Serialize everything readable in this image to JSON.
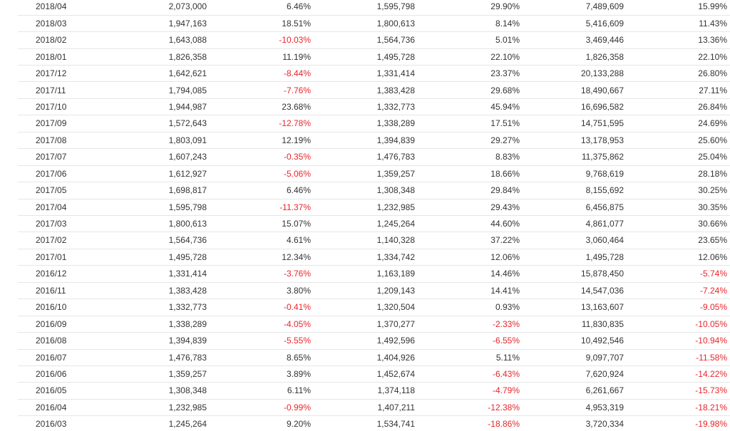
{
  "table": {
    "rows": [
      [
        "2018/04",
        "2,073,000",
        "6.46%",
        "1,595,798",
        "29.90%",
        "7,489,609",
        "15.99%"
      ],
      [
        "2018/03",
        "1,947,163",
        "18.51%",
        "1,800,613",
        "8.14%",
        "5,416,609",
        "11.43%"
      ],
      [
        "2018/02",
        "1,643,088",
        "-10.03%",
        "1,564,736",
        "5.01%",
        "3,469,446",
        "13.36%"
      ],
      [
        "2018/01",
        "1,826,358",
        "11.19%",
        "1,495,728",
        "22.10%",
        "1,826,358",
        "22.10%"
      ],
      [
        "2017/12",
        "1,642,621",
        "-8.44%",
        "1,331,414",
        "23.37%",
        "20,133,288",
        "26.80%"
      ],
      [
        "2017/11",
        "1,794,085",
        "-7.76%",
        "1,383,428",
        "29.68%",
        "18,490,667",
        "27.11%"
      ],
      [
        "2017/10",
        "1,944,987",
        "23.68%",
        "1,332,773",
        "45.94%",
        "16,696,582",
        "26.84%"
      ],
      [
        "2017/09",
        "1,572,643",
        "-12.78%",
        "1,338,289",
        "17.51%",
        "14,751,595",
        "24.69%"
      ],
      [
        "2017/08",
        "1,803,091",
        "12.19%",
        "1,394,839",
        "29.27%",
        "13,178,953",
        "25.60%"
      ],
      [
        "2017/07",
        "1,607,243",
        "-0.35%",
        "1,476,783",
        "8.83%",
        "11,375,862",
        "25.04%"
      ],
      [
        "2017/06",
        "1,612,927",
        "-5.06%",
        "1,359,257",
        "18.66%",
        "9,768,619",
        "28.18%"
      ],
      [
        "2017/05",
        "1,698,817",
        "6.46%",
        "1,308,348",
        "29.84%",
        "8,155,692",
        "30.25%"
      ],
      [
        "2017/04",
        "1,595,798",
        "-11.37%",
        "1,232,985",
        "29.43%",
        "6,456,875",
        "30.35%"
      ],
      [
        "2017/03",
        "1,800,613",
        "15.07%",
        "1,245,264",
        "44.60%",
        "4,861,077",
        "30.66%"
      ],
      [
        "2017/02",
        "1,564,736",
        "4.61%",
        "1,140,328",
        "37.22%",
        "3,060,464",
        "23.65%"
      ],
      [
        "2017/01",
        "1,495,728",
        "12.34%",
        "1,334,742",
        "12.06%",
        "1,495,728",
        "12.06%"
      ],
      [
        "2016/12",
        "1,331,414",
        "-3.76%",
        "1,163,189",
        "14.46%",
        "15,878,450",
        "-5.74%"
      ],
      [
        "2016/11",
        "1,383,428",
        "3.80%",
        "1,209,143",
        "14.41%",
        "14,547,036",
        "-7.24%"
      ],
      [
        "2016/10",
        "1,332,773",
        "-0.41%",
        "1,320,504",
        "0.93%",
        "13,163,607",
        "-9.05%"
      ],
      [
        "2016/09",
        "1,338,289",
        "-4.05%",
        "1,370,277",
        "-2.33%",
        "11,830,835",
        "-10.05%"
      ],
      [
        "2016/08",
        "1,394,839",
        "-5.55%",
        "1,492,596",
        "-6.55%",
        "10,492,546",
        "-10.94%"
      ],
      [
        "2016/07",
        "1,476,783",
        "8.65%",
        "1,404,926",
        "5.11%",
        "9,097,707",
        "-11.58%"
      ],
      [
        "2016/06",
        "1,359,257",
        "3.89%",
        "1,452,674",
        "-6.43%",
        "7,620,924",
        "-14.22%"
      ],
      [
        "2016/05",
        "1,308,348",
        "6.11%",
        "1,374,118",
        "-4.79%",
        "6,261,667",
        "-15.73%"
      ],
      [
        "2016/04",
        "1,232,985",
        "-0.99%",
        "1,407,211",
        "-12.38%",
        "4,953,319",
        "-18.21%"
      ],
      [
        "2016/03",
        "1,245,264",
        "9.20%",
        "1,534,741",
        "-18.86%",
        "3,720,334",
        "-19.98%"
      ]
    ]
  }
}
